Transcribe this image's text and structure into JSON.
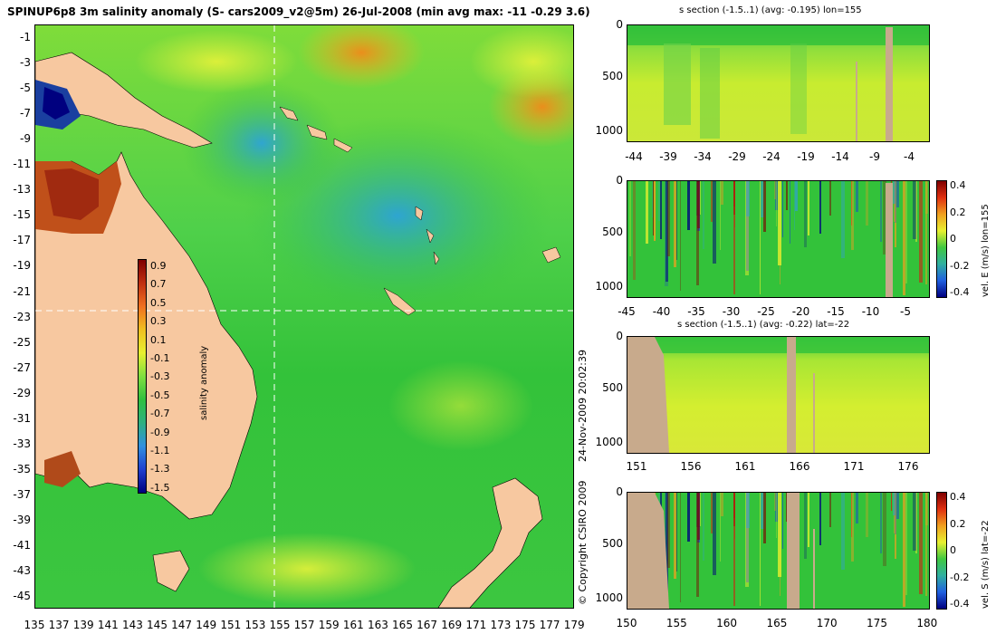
{
  "main_map": {
    "title": "SPINUP6p8 3m salinity anomaly (S- cars2009_v2@5m) 26-Jul-2008 (min avg max: -11 -0.29 3.6)",
    "lat_ticks": [
      "-1",
      "-3",
      "-5",
      "-7",
      "-9",
      "-11",
      "-13",
      "-15",
      "-17",
      "-19",
      "-21",
      "-23",
      "-25",
      "-27",
      "-29",
      "-31",
      "-33",
      "-35",
      "-37",
      "-39",
      "-41",
      "-43",
      "-45"
    ],
    "lon_ticks": [
      "135",
      "137",
      "139",
      "141",
      "143",
      "145",
      "147",
      "149",
      "151",
      "153",
      "155",
      "157",
      "159",
      "161",
      "163",
      "165",
      "167",
      "169",
      "171",
      "173",
      "175",
      "177",
      "179"
    ],
    "colorbar": {
      "label": "salinity anomaly",
      "ticks": [
        "0.9",
        "0.7",
        "0.5",
        "0.3",
        "0.1",
        "-0.1",
        "-0.3",
        "-0.5",
        "-0.7",
        "-0.9",
        "-1.1",
        "-1.3",
        "-1.5"
      ]
    },
    "copyright": "© Copyright CSIRO 2009",
    "timestamp": "24-Nov-2009 20:02:39"
  },
  "panels": {
    "s_lon": {
      "title": "s section (-1.5..1) (avg: -0.195) lon=155",
      "y_ticks": [
        "0",
        "500",
        "1000"
      ],
      "x_ticks": [
        "-44",
        "-39",
        "-34",
        "-29",
        "-24",
        "-19",
        "-14",
        "-9",
        "-4"
      ]
    },
    "vel_e": {
      "y_ticks": [
        "0",
        "500",
        "1000"
      ],
      "x_ticks": [
        "-45",
        "-40",
        "-35",
        "-30",
        "-25",
        "-20",
        "-15",
        "-10",
        "-5"
      ],
      "cbar_ticks": [
        "0.4",
        "0.2",
        "0",
        "-0.2",
        "-0.4"
      ],
      "cbar_label": "vel. E (m/s) lon=155"
    },
    "s_lat": {
      "title": "s section (-1.5..1) (avg: -0.22) lat=-22",
      "y_ticks": [
        "0",
        "500",
        "1000"
      ],
      "x_ticks": [
        "151",
        "156",
        "161",
        "166",
        "171",
        "176"
      ]
    },
    "vel_s": {
      "y_ticks": [
        "0",
        "500",
        "1000"
      ],
      "x_ticks": [
        "150",
        "155",
        "160",
        "165",
        "170",
        "175",
        "180"
      ],
      "cbar_ticks": [
        "0.4",
        "0.2",
        "0",
        "-0.2",
        "-0.4"
      ],
      "cbar_label": "vel. S (m/s) lat=-22"
    }
  },
  "colors": {
    "land": "#f7c8a0",
    "section_land": "#c8aa8c",
    "ocean_green": "#2fbf3a",
    "anomaly_low": "#00007f",
    "anomaly_high": "#7f0000"
  }
}
